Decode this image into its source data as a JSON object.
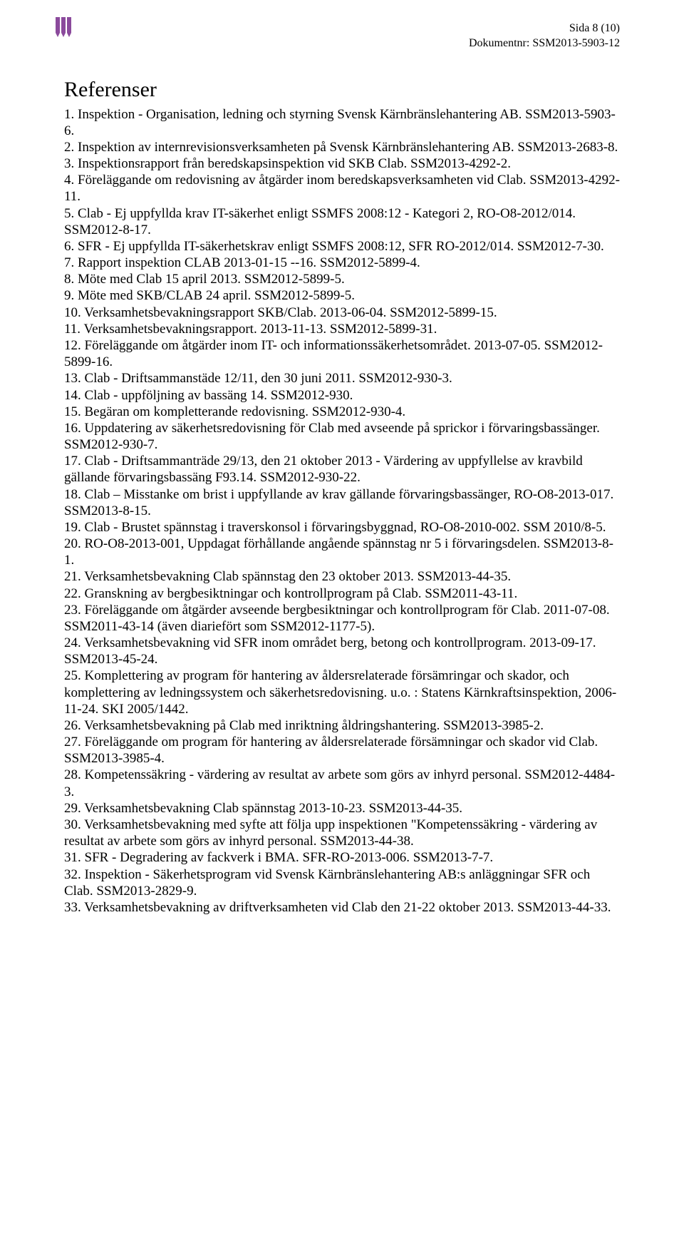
{
  "header": {
    "page_label": "Sida 8 (10)",
    "doc_label": "Dokumentnr: SSM2013-5903-12",
    "logo_color": "#8b4a9c"
  },
  "title": "Referenser",
  "references": [
    "1. Inspektion - Organisation, ledning och styrning Svensk Kärnbränslehantering AB. SSM2013-5903-6.",
    "2. Inspektion av internrevisionsverksamheten på Svensk Kärnbränslehantering AB. SSM2013-2683-8.",
    "3. Inspektionsrapport från beredskapsinspektion vid SKB Clab. SSM2013-4292-2.",
    "4. Föreläggande om redovisning av åtgärder inom beredskapsverksamheten vid Clab. SSM2013-4292-11.",
    "5. Clab - Ej uppfyllda krav IT-säkerhet enligt SSMFS 2008:12 - Kategori 2, RO-O8-2012/014. SSM2012-8-17.",
    "6. SFR - Ej uppfyllda IT-säkerhetskrav enligt SSMFS 2008:12, SFR RO-2012/014. SSM2012-7-30.",
    "7. Rapport inspektion CLAB 2013-01-15 --16. SSM2012-5899-4.",
    "8. Möte med Clab 15 april 2013. SSM2012-5899-5.",
    "9. Möte med SKB/CLAB 24 april. SSM2012-5899-5.",
    "10. Verksamhetsbevakningsrapport SKB/Clab. 2013-06-04. SSM2012-5899-15.",
    "11. Verksamhetsbevakningsrapport. 2013-11-13. SSM2012-5899-31.",
    "12. Föreläggande om åtgärder inom IT- och informationssäkerhetsområdet. 2013-07-05. SSM2012-5899-16.",
    "13. Clab - Driftsammanstäde 12/11, den 30 juni 2011. SSM2012-930-3.",
    "14. Clab - uppföljning av bassäng 14. SSM2012-930.",
    "15. Begäran om kompletterande redovisning. SSM2012-930-4.",
    "16. Uppdatering av säkerhetsredovisning för Clab med avseende på sprickor i förvaringsbassänger. SSM2012-930-7.",
    "17. Clab - Driftsammanträde 29/13, den 21 oktober 2013 - Värdering av uppfyllelse av kravbild gällande förvaringsbassäng F93.14. SSM2012-930-22.",
    "18. Clab – Misstanke om brist i uppfyllande av krav gällande förvaringsbassänger, RO-O8-2013-017. SSM2013-8-15.",
    "19. Clab - Brustet spännstag i traverskonsol i förvaringsbyggnad, RO-O8-2010-002. SSM 2010/8-5.",
    "20. RO-O8-2013-001, Uppdagat förhållande angående spännstag nr 5 i förvaringsdelen. SSM2013-8-1.",
    "21. Verksamhetsbevakning Clab spännstag den 23 oktober 2013. SSM2013-44-35.",
    "22. Granskning av bergbesiktningar och kontrollprogram på Clab. SSM2011-43-11.",
    "23. Föreläggande om åtgärder avseende bergbesiktningar och kontrollprogram för Clab. 2011-07-08. SSM2011-43-14 (även diariefört som SSM2012-1177-5).",
    "24. Verksamhetsbevakning vid SFR inom området berg, betong och kontrollprogram. 2013-09-17. SSM2013-45-24.",
    "25. Komplettering av program för hantering av åldersrelaterade försämringar och skador, och komplettering av ledningssystem och säkerhetsredovisning. u.o. : Statens Kärnkraftsinspektion, 2006-11-24. SKI 2005/1442.",
    "26. Verksamhetsbevakning på Clab med inriktning åldringshantering. SSM2013-3985-2.",
    "27. Föreläggande om program för hantering av åldersrelaterade försämningar och skador vid Clab. SSM2013-3985-4.",
    "28. Kompetenssäkring - värdering av resultat av arbete som görs av inhyrd personal. SSM2012-4484-3.",
    "29. Verksamhetsbevakning Clab spännstag 2013-10-23. SSM2013-44-35.",
    "30. Verksamhetsbevakning med syfte att följa upp inspektionen \"Kompetenssäkring - värdering av resultat av arbete som görs av inhyrd personal. SSM2013-44-38.",
    "31. SFR - Degradering av fackverk i BMA. SFR-RO-2013-006. SSM2013-7-7.",
    "32. Inspektion - Säkerhetsprogram vid Svensk Kärnbränslehantering AB:s anläggningar SFR och Clab. SSM2013-2829-9.",
    "33. Verksamhetsbevakning av driftverksamheten vid Clab den 21-22 oktober 2013. SSM2013-44-33."
  ]
}
